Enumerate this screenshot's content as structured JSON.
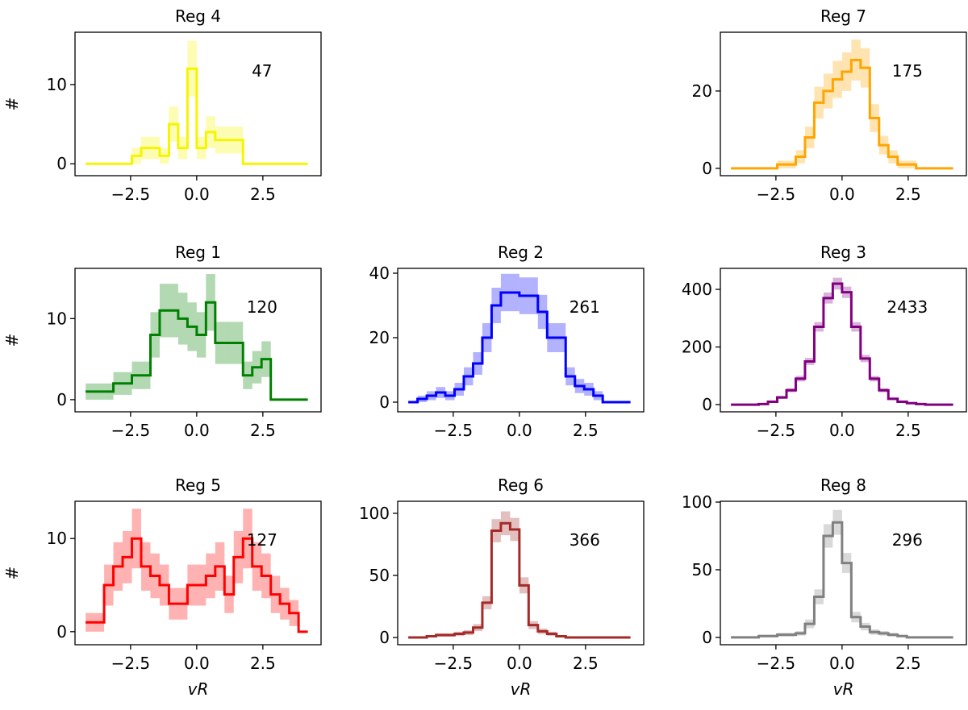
{
  "chart_data": [
    {
      "type": "histogram",
      "title": "Reg 4",
      "annotation": "47",
      "ylabel": "#",
      "color": "#f5f500",
      "bins": [
        -4.2,
        -3.85,
        -3.5,
        -3.15,
        -2.8,
        -2.45,
        -2.1,
        -1.75,
        -1.4,
        -1.05,
        -0.7,
        -0.35,
        0,
        0.35,
        0.7,
        1.05,
        1.4,
        1.75,
        2.1,
        2.45,
        2.8,
        3.15,
        3.5,
        3.85,
        4.2
      ],
      "values": [
        0,
        0,
        0,
        0,
        0,
        1,
        2,
        2,
        1,
        5,
        2,
        12,
        2,
        4,
        3,
        3,
        3,
        0,
        0,
        0,
        0,
        0,
        0,
        0
      ],
      "errors": [
        0,
        0,
        0,
        0,
        0,
        1,
        1.4,
        1.4,
        1,
        2.2,
        1.4,
        3.5,
        1.4,
        2,
        1.7,
        1.7,
        1.7,
        0,
        0,
        0,
        0,
        0,
        0,
        0
      ],
      "xlim": [
        -4.6,
        4.7
      ],
      "xticks": [
        {
          "value": -2.5,
          "label": "−2.5"
        },
        {
          "value": 0,
          "label": "0.0"
        },
        2.5
      ],
      "ylim": [
        -1.5,
        16.6
      ],
      "yticks": [
        0,
        10
      ]
    },
    {
      "type": "histogram",
      "title": "Reg 7",
      "annotation": "175",
      "color": "#ffa500",
      "bins": [
        -4.2,
        -3.85,
        -3.5,
        -3.15,
        -2.8,
        -2.45,
        -2.1,
        -1.75,
        -1.4,
        -1.05,
        -0.7,
        -0.35,
        0,
        0.35,
        0.7,
        1.05,
        1.4,
        1.75,
        2.1,
        2.45,
        2.8,
        3.15,
        3.5,
        3.85,
        4.2
      ],
      "values": [
        0,
        0,
        0,
        0,
        0,
        1,
        1,
        3,
        8,
        17,
        20,
        23,
        25,
        28,
        26,
        13,
        6,
        3,
        1,
        1,
        0,
        0,
        0,
        0
      ],
      "errors": [
        0,
        0,
        0,
        0,
        0,
        1,
        1,
        1.7,
        2.8,
        4.1,
        4.5,
        4.8,
        5,
        5.3,
        5.1,
        3.6,
        2.4,
        1.7,
        1,
        1,
        0,
        0,
        0,
        0
      ],
      "xlim": [
        -4.6,
        4.7
      ],
      "xticks": [
        {
          "value": -2.5,
          "label": "−2.5"
        },
        {
          "value": 0,
          "label": "0.0"
        },
        2.5
      ],
      "ylim": [
        -1.9,
        35.2
      ],
      "yticks": [
        0,
        20
      ]
    },
    {
      "type": "histogram",
      "title": "Reg 1",
      "annotation": "120",
      "ylabel": "#",
      "color": "#008000",
      "bins": [
        -4.2,
        -3.85,
        -3.5,
        -3.15,
        -2.8,
        -2.45,
        -2.1,
        -1.75,
        -1.4,
        -1.05,
        -0.7,
        -0.35,
        0,
        0.35,
        0.7,
        1.05,
        1.4,
        1.75,
        2.1,
        2.45,
        2.8,
        3.15,
        3.5,
        3.85,
        4.2
      ],
      "values": [
        1,
        1,
        1,
        2,
        2,
        3,
        3,
        8,
        11,
        11,
        10,
        9,
        8,
        12,
        7,
        7,
        7,
        3,
        4,
        5,
        0,
        0,
        0,
        0
      ],
      "errors": [
        1,
        1,
        1,
        1.4,
        1.4,
        1.7,
        1.7,
        2.8,
        3.3,
        3.3,
        3.2,
        3,
        2.8,
        3.5,
        2.6,
        2.6,
        2.6,
        1.7,
        2,
        2.2,
        0,
        0,
        0,
        0
      ],
      "xlim": [
        -4.6,
        4.7
      ],
      "xticks": [
        {
          "value": -2.5,
          "label": "−2.5"
        },
        {
          "value": 0,
          "label": "0.0"
        },
        2.5
      ],
      "ylim": [
        -1.5,
        16.2
      ],
      "yticks": [
        0,
        10
      ]
    },
    {
      "type": "histogram",
      "title": "Reg 2",
      "annotation": "261",
      "color": "#0000ff",
      "bins": [
        -4.2,
        -3.85,
        -3.5,
        -3.15,
        -2.8,
        -2.45,
        -2.1,
        -1.75,
        -1.4,
        -1.05,
        -0.7,
        -0.35,
        0,
        0.35,
        0.7,
        1.05,
        1.4,
        1.75,
        2.1,
        2.45,
        2.8,
        3.15,
        3.5,
        3.85,
        4.2
      ],
      "values": [
        0,
        1,
        2,
        3,
        2,
        4,
        8,
        12,
        20,
        30,
        34,
        34,
        33,
        33,
        28,
        20,
        20,
        8,
        5,
        4,
        2,
        0,
        0,
        0
      ],
      "errors": [
        0,
        1,
        1.4,
        1.7,
        1.4,
        2,
        2.8,
        3.5,
        4.5,
        5.5,
        5.8,
        5.8,
        5.7,
        5.7,
        5.3,
        4.5,
        4.5,
        2.8,
        2.2,
        2,
        1.4,
        0,
        0,
        0
      ],
      "xlim": [
        -4.6,
        4.7
      ],
      "xticks": [
        {
          "value": -2.5,
          "label": "−2.5"
        },
        {
          "value": 0,
          "label": "0.0"
        },
        2.5
      ],
      "ylim": [
        -3,
        41.5
      ],
      "yticks": [
        0,
        20,
        40
      ]
    },
    {
      "type": "histogram",
      "title": "Reg 3",
      "annotation": "2433",
      "color": "#800080",
      "bins": [
        -4.2,
        -3.85,
        -3.5,
        -3.15,
        -2.8,
        -2.45,
        -2.1,
        -1.75,
        -1.4,
        -1.05,
        -0.7,
        -0.35,
        0,
        0.35,
        0.7,
        1.05,
        1.4,
        1.75,
        2.1,
        2.45,
        2.8,
        3.15,
        3.5,
        3.85,
        4.2
      ],
      "values": [
        0,
        0,
        0,
        2,
        10,
        25,
        50,
        90,
        150,
        270,
        370,
        420,
        390,
        270,
        160,
        90,
        50,
        20,
        10,
        5,
        2,
        0,
        0,
        0
      ],
      "errors": [
        0,
        0,
        0,
        1.4,
        3.2,
        5,
        7.1,
        9.5,
        12.2,
        16.4,
        19.2,
        20.5,
        19.7,
        16.4,
        12.6,
        9.5,
        7.1,
        4.5,
        3.2,
        2.2,
        1.4,
        0,
        0,
        0
      ],
      "xlim": [
        -4.6,
        4.7
      ],
      "xticks": [
        {
          "value": -2.5,
          "label": "−2.5"
        },
        {
          "value": 0,
          "label": "0.0"
        },
        2.5
      ],
      "ylim": [
        -25,
        473
      ],
      "yticks": [
        0,
        200,
        400
      ]
    },
    {
      "type": "histogram",
      "title": "Reg 5",
      "annotation": "127",
      "ylabel": "#",
      "xlabel": "vR",
      "color": "#ff0000",
      "bins": [
        -4.2,
        -3.85,
        -3.5,
        -3.15,
        -2.8,
        -2.45,
        -2.1,
        -1.75,
        -1.4,
        -1.05,
        -0.7,
        -0.35,
        0,
        0.35,
        0.7,
        1.05,
        1.4,
        1.75,
        2.1,
        2.45,
        2.8,
        3.15,
        3.5,
        3.85,
        4.2
      ],
      "values": [
        1,
        1,
        5,
        7,
        8,
        10,
        7,
        6,
        5,
        3,
        3,
        5,
        5,
        6,
        7,
        4,
        8,
        10,
        7,
        6,
        4,
        3,
        2,
        0
      ],
      "errors": [
        1,
        1,
        2.2,
        2.6,
        2.8,
        3.2,
        2.6,
        2.4,
        2.2,
        1.7,
        1.7,
        2.2,
        2.2,
        2.4,
        2.6,
        2,
        2.8,
        3.2,
        2.6,
        2.4,
        2,
        1.7,
        1.4,
        0
      ],
      "xlim": [
        -4.6,
        4.7
      ],
      "xticks": [
        {
          "value": -2.5,
          "label": "−2.5"
        },
        {
          "value": 0,
          "label": "0.0"
        },
        2.5
      ],
      "ylim": [
        -1.4,
        14
      ],
      "yticks": [
        0,
        10
      ]
    },
    {
      "type": "histogram",
      "title": "Reg 6",
      "annotation": "366",
      "xlabel": "vR",
      "color": "#a52a2a",
      "bins": [
        -4.2,
        -3.85,
        -3.5,
        -3.15,
        -2.8,
        -2.45,
        -2.1,
        -1.75,
        -1.4,
        -1.05,
        -0.7,
        -0.35,
        0,
        0.35,
        0.7,
        1.05,
        1.4,
        1.75,
        2.1,
        2.45,
        2.8,
        3.15,
        3.5,
        3.85,
        4.2
      ],
      "values": [
        0,
        0,
        1,
        2,
        2,
        3,
        4,
        8,
        28,
        86,
        92,
        87,
        42,
        10,
        5,
        3,
        1,
        0,
        0,
        0,
        0,
        0,
        0,
        0
      ],
      "errors": [
        0,
        0,
        1,
        1.4,
        1.4,
        1.7,
        2,
        2.8,
        5.3,
        9.3,
        9.6,
        9.3,
        6.5,
        3.2,
        2.2,
        1.7,
        1,
        0,
        0,
        0,
        0,
        0,
        0,
        0
      ],
      "xlim": [
        -4.6,
        4.7
      ],
      "xticks": [
        {
          "value": -2.5,
          "label": "−2.5"
        },
        {
          "value": 0,
          "label": "0.0"
        },
        2.5
      ],
      "ylim": [
        -5.8,
        109.7
      ],
      "yticks": [
        0,
        50,
        100
      ]
    },
    {
      "type": "histogram",
      "title": "Reg 8",
      "annotation": "296",
      "xlabel": "vR",
      "color": "#808080",
      "bins": [
        -4.2,
        -3.85,
        -3.5,
        -3.15,
        -2.8,
        -2.45,
        -2.1,
        -1.75,
        -1.4,
        -1.05,
        -0.7,
        -0.35,
        0,
        0.35,
        0.7,
        1.05,
        1.4,
        1.75,
        2.1,
        2.45,
        2.8,
        3.15,
        3.5,
        3.85,
        4.2
      ],
      "values": [
        0,
        0,
        0,
        1,
        1,
        2,
        2,
        3,
        10,
        30,
        75,
        85,
        55,
        15,
        8,
        4,
        3,
        2,
        1,
        0,
        0,
        0,
        0,
        0
      ],
      "errors": [
        0,
        0,
        0,
        1,
        1,
        1.4,
        1.4,
        1.7,
        3.2,
        5.5,
        8.7,
        9.2,
        7.4,
        3.9,
        2.8,
        2,
        1.7,
        1.4,
        1,
        0,
        0,
        0,
        0,
        0
      ],
      "xlim": [
        -4.6,
        4.7
      ],
      "xticks": [
        {
          "value": -2.5,
          "label": "−2.5"
        },
        {
          "value": 0,
          "label": "0.0"
        },
        2.5
      ],
      "ylim": [
        -5.4,
        100.6
      ],
      "yticks": [
        0,
        50,
        100
      ]
    }
  ]
}
